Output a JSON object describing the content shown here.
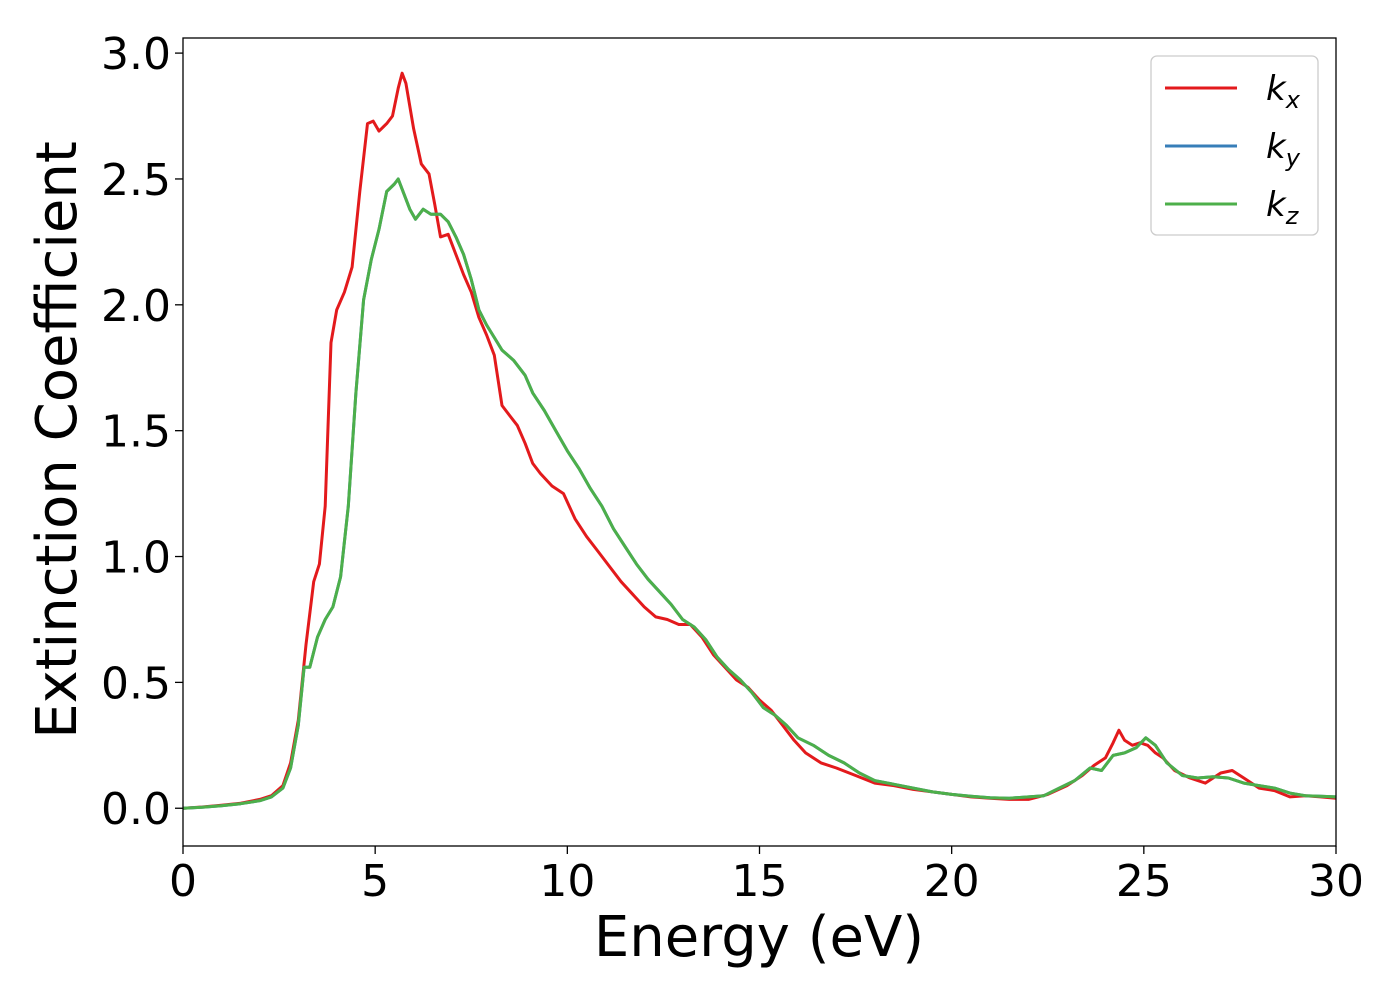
{
  "chart_data": {
    "type": "line",
    "xlabel": "Energy (eV)",
    "ylabel": "Extinction Coefficient",
    "xlim": [
      0,
      30
    ],
    "ylim": [
      -0.15,
      3.06
    ],
    "xticks": [
      0,
      5,
      10,
      15,
      20,
      25,
      30
    ],
    "xtick_labels": [
      "0",
      "5",
      "10",
      "15",
      "20",
      "25",
      "30"
    ],
    "yticks": [
      0.0,
      0.5,
      1.0,
      1.5,
      2.0,
      2.5,
      3.0
    ],
    "ytick_labels": [
      "0.0",
      "0.5",
      "1.0",
      "1.5",
      "2.0",
      "2.5",
      "3.0"
    ],
    "grid": false,
    "legend_position": "top-right",
    "colors": {
      "kx": "#e31a1c",
      "ky": "#377eb8",
      "kz": "#4daf4a"
    },
    "series": [
      {
        "key": "kx",
        "name": "k",
        "subscript": "x",
        "color": "#e31a1c",
        "points": [
          [
            0,
            0.0
          ],
          [
            0.5,
            0.005
          ],
          [
            1.0,
            0.012
          ],
          [
            1.5,
            0.02
          ],
          [
            2.0,
            0.035
          ],
          [
            2.3,
            0.05
          ],
          [
            2.6,
            0.09
          ],
          [
            2.8,
            0.18
          ],
          [
            3.0,
            0.35
          ],
          [
            3.2,
            0.65
          ],
          [
            3.4,
            0.9
          ],
          [
            3.55,
            0.97
          ],
          [
            3.7,
            1.2
          ],
          [
            3.85,
            1.85
          ],
          [
            4.0,
            1.98
          ],
          [
            4.2,
            2.05
          ],
          [
            4.4,
            2.15
          ],
          [
            4.6,
            2.45
          ],
          [
            4.8,
            2.72
          ],
          [
            4.95,
            2.73
          ],
          [
            5.1,
            2.69
          ],
          [
            5.3,
            2.72
          ],
          [
            5.45,
            2.75
          ],
          [
            5.6,
            2.86
          ],
          [
            5.7,
            2.92
          ],
          [
            5.8,
            2.88
          ],
          [
            6.0,
            2.7
          ],
          [
            6.2,
            2.56
          ],
          [
            6.4,
            2.52
          ],
          [
            6.55,
            2.4
          ],
          [
            6.7,
            2.27
          ],
          [
            6.9,
            2.28
          ],
          [
            7.1,
            2.2
          ],
          [
            7.3,
            2.12
          ],
          [
            7.5,
            2.05
          ],
          [
            7.7,
            1.95
          ],
          [
            7.9,
            1.88
          ],
          [
            8.1,
            1.8
          ],
          [
            8.3,
            1.6
          ],
          [
            8.5,
            1.56
          ],
          [
            8.7,
            1.52
          ],
          [
            8.9,
            1.45
          ],
          [
            9.1,
            1.37
          ],
          [
            9.3,
            1.33
          ],
          [
            9.6,
            1.28
          ],
          [
            9.9,
            1.25
          ],
          [
            10.2,
            1.15
          ],
          [
            10.5,
            1.08
          ],
          [
            10.8,
            1.02
          ],
          [
            11.1,
            0.96
          ],
          [
            11.4,
            0.9
          ],
          [
            11.7,
            0.85
          ],
          [
            12.0,
            0.8
          ],
          [
            12.3,
            0.76
          ],
          [
            12.6,
            0.75
          ],
          [
            12.9,
            0.73
          ],
          [
            13.2,
            0.73
          ],
          [
            13.5,
            0.68
          ],
          [
            13.8,
            0.61
          ],
          [
            14.1,
            0.56
          ],
          [
            14.4,
            0.51
          ],
          [
            14.7,
            0.48
          ],
          [
            15.0,
            0.43
          ],
          [
            15.3,
            0.39
          ],
          [
            15.6,
            0.33
          ],
          [
            15.9,
            0.27
          ],
          [
            16.2,
            0.22
          ],
          [
            16.6,
            0.18
          ],
          [
            17.0,
            0.16
          ],
          [
            17.5,
            0.13
          ],
          [
            18.0,
            0.1
          ],
          [
            18.5,
            0.09
          ],
          [
            19.0,
            0.075
          ],
          [
            19.5,
            0.065
          ],
          [
            20.0,
            0.055
          ],
          [
            20.5,
            0.045
          ],
          [
            21.0,
            0.04
          ],
          [
            21.5,
            0.035
          ],
          [
            22.0,
            0.035
          ],
          [
            22.5,
            0.055
          ],
          [
            23.0,
            0.09
          ],
          [
            23.4,
            0.13
          ],
          [
            23.7,
            0.17
          ],
          [
            24.0,
            0.2
          ],
          [
            24.2,
            0.26
          ],
          [
            24.35,
            0.31
          ],
          [
            24.5,
            0.27
          ],
          [
            24.7,
            0.25
          ],
          [
            24.9,
            0.26
          ],
          [
            25.1,
            0.25
          ],
          [
            25.3,
            0.22
          ],
          [
            25.5,
            0.2
          ],
          [
            25.8,
            0.15
          ],
          [
            26.2,
            0.12
          ],
          [
            26.6,
            0.1
          ],
          [
            27.0,
            0.14
          ],
          [
            27.3,
            0.15
          ],
          [
            27.6,
            0.12
          ],
          [
            28.0,
            0.08
          ],
          [
            28.4,
            0.07
          ],
          [
            28.8,
            0.045
          ],
          [
            29.2,
            0.05
          ],
          [
            29.6,
            0.045
          ],
          [
            30.0,
            0.04
          ]
        ]
      },
      {
        "key": "ky",
        "name": "k",
        "subscript": "y",
        "color": "#377eb8",
        "points": [
          [
            0,
            0.0
          ],
          [
            0.5,
            0.004
          ],
          [
            1.0,
            0.01
          ],
          [
            1.5,
            0.018
          ],
          [
            2.0,
            0.03
          ],
          [
            2.3,
            0.045
          ],
          [
            2.6,
            0.08
          ],
          [
            2.8,
            0.16
          ],
          [
            3.0,
            0.33
          ],
          [
            3.15,
            0.56
          ],
          [
            3.3,
            0.56
          ],
          [
            3.5,
            0.68
          ],
          [
            3.7,
            0.75
          ],
          [
            3.9,
            0.8
          ],
          [
            4.1,
            0.92
          ],
          [
            4.3,
            1.2
          ],
          [
            4.5,
            1.65
          ],
          [
            4.7,
            2.02
          ],
          [
            4.9,
            2.18
          ],
          [
            5.1,
            2.3
          ],
          [
            5.3,
            2.45
          ],
          [
            5.5,
            2.48
          ],
          [
            5.6,
            2.5
          ],
          [
            5.75,
            2.44
          ],
          [
            5.9,
            2.38
          ],
          [
            6.05,
            2.34
          ],
          [
            6.25,
            2.38
          ],
          [
            6.45,
            2.36
          ],
          [
            6.7,
            2.36
          ],
          [
            6.9,
            2.33
          ],
          [
            7.1,
            2.27
          ],
          [
            7.3,
            2.2
          ],
          [
            7.5,
            2.1
          ],
          [
            7.7,
            1.98
          ],
          [
            7.9,
            1.92
          ],
          [
            8.1,
            1.87
          ],
          [
            8.3,
            1.82
          ],
          [
            8.6,
            1.78
          ],
          [
            8.9,
            1.72
          ],
          [
            9.1,
            1.65
          ],
          [
            9.4,
            1.58
          ],
          [
            9.7,
            1.5
          ],
          [
            10.0,
            1.42
          ],
          [
            10.3,
            1.35
          ],
          [
            10.6,
            1.27
          ],
          [
            10.9,
            1.2
          ],
          [
            11.2,
            1.11
          ],
          [
            11.5,
            1.04
          ],
          [
            11.8,
            0.97
          ],
          [
            12.1,
            0.91
          ],
          [
            12.4,
            0.86
          ],
          [
            12.7,
            0.81
          ],
          [
            13.0,
            0.75
          ],
          [
            13.3,
            0.72
          ],
          [
            13.6,
            0.67
          ],
          [
            13.9,
            0.6
          ],
          [
            14.2,
            0.55
          ],
          [
            14.5,
            0.51
          ],
          [
            14.8,
            0.46
          ],
          [
            15.1,
            0.4
          ],
          [
            15.4,
            0.37
          ],
          [
            15.7,
            0.33
          ],
          [
            16.0,
            0.28
          ],
          [
            16.4,
            0.25
          ],
          [
            16.8,
            0.21
          ],
          [
            17.2,
            0.18
          ],
          [
            17.6,
            0.14
          ],
          [
            18.0,
            0.11
          ],
          [
            18.5,
            0.095
          ],
          [
            19.0,
            0.08
          ],
          [
            19.5,
            0.065
          ],
          [
            20.0,
            0.055
          ],
          [
            20.5,
            0.048
          ],
          [
            21.0,
            0.042
          ],
          [
            21.5,
            0.04
          ],
          [
            22.0,
            0.045
          ],
          [
            22.4,
            0.05
          ],
          [
            22.8,
            0.08
          ],
          [
            23.2,
            0.11
          ],
          [
            23.6,
            0.16
          ],
          [
            23.9,
            0.15
          ],
          [
            24.2,
            0.21
          ],
          [
            24.5,
            0.22
          ],
          [
            24.8,
            0.24
          ],
          [
            25.05,
            0.28
          ],
          [
            25.3,
            0.25
          ],
          [
            25.6,
            0.18
          ],
          [
            26.0,
            0.13
          ],
          [
            26.4,
            0.12
          ],
          [
            26.8,
            0.125
          ],
          [
            27.2,
            0.12
          ],
          [
            27.6,
            0.1
          ],
          [
            28.0,
            0.09
          ],
          [
            28.4,
            0.08
          ],
          [
            28.8,
            0.06
          ],
          [
            29.2,
            0.05
          ],
          [
            29.6,
            0.048
          ],
          [
            30.0,
            0.045
          ]
        ]
      },
      {
        "key": "kz",
        "name": "k",
        "subscript": "z",
        "color": "#4daf4a",
        "points": [
          [
            0,
            0.0
          ],
          [
            0.5,
            0.004
          ],
          [
            1.0,
            0.01
          ],
          [
            1.5,
            0.018
          ],
          [
            2.0,
            0.03
          ],
          [
            2.3,
            0.045
          ],
          [
            2.6,
            0.08
          ],
          [
            2.8,
            0.16
          ],
          [
            3.0,
            0.33
          ],
          [
            3.15,
            0.56
          ],
          [
            3.3,
            0.56
          ],
          [
            3.5,
            0.68
          ],
          [
            3.7,
            0.75
          ],
          [
            3.9,
            0.8
          ],
          [
            4.1,
            0.92
          ],
          [
            4.3,
            1.2
          ],
          [
            4.5,
            1.65
          ],
          [
            4.7,
            2.02
          ],
          [
            4.9,
            2.18
          ],
          [
            5.1,
            2.3
          ],
          [
            5.3,
            2.45
          ],
          [
            5.5,
            2.48
          ],
          [
            5.6,
            2.5
          ],
          [
            5.75,
            2.44
          ],
          [
            5.9,
            2.38
          ],
          [
            6.05,
            2.34
          ],
          [
            6.25,
            2.38
          ],
          [
            6.45,
            2.36
          ],
          [
            6.7,
            2.36
          ],
          [
            6.9,
            2.33
          ],
          [
            7.1,
            2.27
          ],
          [
            7.3,
            2.2
          ],
          [
            7.5,
            2.1
          ],
          [
            7.7,
            1.98
          ],
          [
            7.9,
            1.92
          ],
          [
            8.1,
            1.87
          ],
          [
            8.3,
            1.82
          ],
          [
            8.6,
            1.78
          ],
          [
            8.9,
            1.72
          ],
          [
            9.1,
            1.65
          ],
          [
            9.4,
            1.58
          ],
          [
            9.7,
            1.5
          ],
          [
            10.0,
            1.42
          ],
          [
            10.3,
            1.35
          ],
          [
            10.6,
            1.27
          ],
          [
            10.9,
            1.2
          ],
          [
            11.2,
            1.11
          ],
          [
            11.5,
            1.04
          ],
          [
            11.8,
            0.97
          ],
          [
            12.1,
            0.91
          ],
          [
            12.4,
            0.86
          ],
          [
            12.7,
            0.81
          ],
          [
            13.0,
            0.75
          ],
          [
            13.3,
            0.72
          ],
          [
            13.6,
            0.67
          ],
          [
            13.9,
            0.6
          ],
          [
            14.2,
            0.55
          ],
          [
            14.5,
            0.51
          ],
          [
            14.8,
            0.46
          ],
          [
            15.1,
            0.4
          ],
          [
            15.4,
            0.37
          ],
          [
            15.7,
            0.33
          ],
          [
            16.0,
            0.28
          ],
          [
            16.4,
            0.25
          ],
          [
            16.8,
            0.21
          ],
          [
            17.2,
            0.18
          ],
          [
            17.6,
            0.14
          ],
          [
            18.0,
            0.11
          ],
          [
            18.5,
            0.095
          ],
          [
            19.0,
            0.08
          ],
          [
            19.5,
            0.065
          ],
          [
            20.0,
            0.055
          ],
          [
            20.5,
            0.048
          ],
          [
            21.0,
            0.042
          ],
          [
            21.5,
            0.04
          ],
          [
            22.0,
            0.045
          ],
          [
            22.4,
            0.05
          ],
          [
            22.8,
            0.08
          ],
          [
            23.2,
            0.11
          ],
          [
            23.6,
            0.16
          ],
          [
            23.9,
            0.15
          ],
          [
            24.2,
            0.21
          ],
          [
            24.5,
            0.22
          ],
          [
            24.8,
            0.24
          ],
          [
            25.05,
            0.28
          ],
          [
            25.3,
            0.25
          ],
          [
            25.6,
            0.18
          ],
          [
            26.0,
            0.13
          ],
          [
            26.4,
            0.12
          ],
          [
            26.8,
            0.125
          ],
          [
            27.2,
            0.12
          ],
          [
            27.6,
            0.1
          ],
          [
            28.0,
            0.09
          ],
          [
            28.4,
            0.08
          ],
          [
            28.8,
            0.06
          ],
          [
            29.2,
            0.05
          ],
          [
            29.6,
            0.048
          ],
          [
            30.0,
            0.045
          ]
        ]
      }
    ]
  }
}
